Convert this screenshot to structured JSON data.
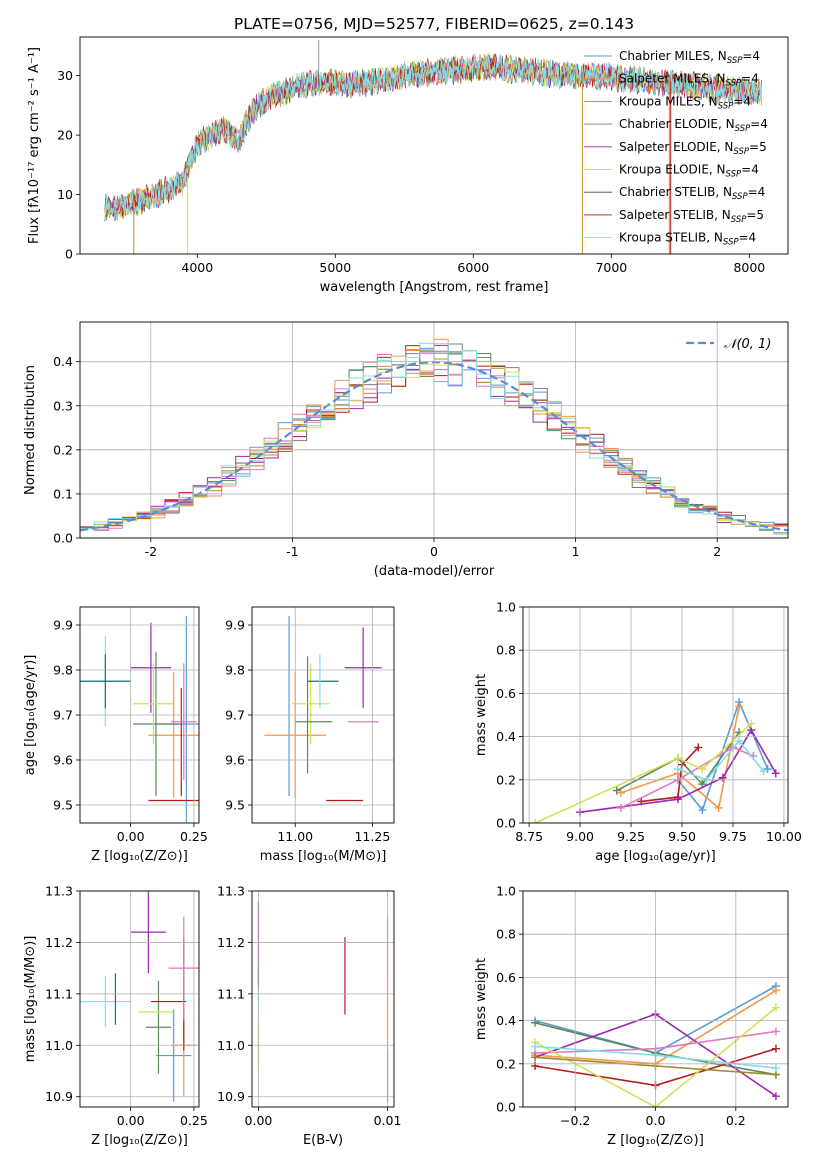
{
  "figure_title": "PLATE=0756, MJD=52577, FIBERID=0625, z=0.143",
  "colors": [
    "#1f77b4",
    "#ff7f0e",
    "#2ca02c",
    "#d62728",
    "#9467bd",
    "#8c564b",
    "#e377c2",
    "#7f7f7f",
    "#bcbd22",
    "#17becf"
  ],
  "chart_data": [
    {
      "id": "spectrum",
      "type": "line",
      "title": "PLATE=0756, MJD=52577, FIBERID=0625, z=0.143",
      "xlabel": "wavelength [Angstrom, rest frame]",
      "ylabel": "Flux [fλ10⁻¹⁷ erg cm⁻² s⁻¹ A⁻¹]",
      "xlim": [
        3150,
        8280
      ],
      "ylim": [
        0,
        36.5
      ],
      "xticks": [
        4000,
        5000,
        6000,
        7000,
        8000
      ],
      "yticks": [
        0,
        10,
        20,
        30
      ],
      "grid": false,
      "legend": "top-right",
      "x_range_data": [
        3330,
        8090
      ],
      "anchor_wavelengths": [
        3330,
        3400,
        3500,
        3600,
        3700,
        3800,
        3900,
        3950,
        4000,
        4100,
        4200,
        4300,
        4400,
        4500,
        4700,
        4900,
        5100,
        5300,
        5500,
        5700,
        5900,
        6100,
        6300,
        6500,
        6700,
        6900,
        7100,
        7300,
        7500,
        7700,
        7900,
        8090
      ],
      "anchor_flux": [
        8,
        7.5,
        8.5,
        9,
        10,
        11,
        12,
        16,
        18.5,
        20,
        21,
        19,
        24,
        26,
        28,
        29,
        28.5,
        29,
        30,
        30.5,
        31,
        31.5,
        31,
        30.5,
        30,
        30,
        29.5,
        29,
        28.5,
        28,
        27.5,
        27
      ],
      "series": [
        {
          "name": "Chabrier MILES, N_SSP=4",
          "label_main": "Chabrier MILES, N",
          "label_sub": "SSP",
          "label_tail": "=4",
          "color": "#5b9bd5"
        },
        {
          "name": "Salpeter MILES, N_SSP=4",
          "label_main": "Salpeter MILES, N",
          "label_sub": "SSP",
          "label_tail": "=4",
          "color": "#f79646"
        },
        {
          "name": "Kroupa MILES, N_SSP=4",
          "label_main": "Kroupa MILES, N",
          "label_sub": "SSP",
          "label_tail": "=4",
          "color": "#c08b2c"
        },
        {
          "name": "Chabrier ELODIE, N_SSP=4",
          "label_main": "Chabrier ELODIE, N",
          "label_sub": "SSP",
          "label_tail": "=4",
          "color": "#5a8a5a"
        },
        {
          "name": "Salpeter ELODIE, N_SSP=5",
          "label_main": "Salpeter ELODIE, N",
          "label_sub": "SSP",
          "label_tail": "=5",
          "color": "#9c27b0"
        },
        {
          "name": "Kroupa ELODIE, N_SSP=4",
          "label_main": "Kroupa ELODIE, N",
          "label_sub": "SSP",
          "label_tail": "=4",
          "color": "#d4e157"
        },
        {
          "name": "Chabrier STELIB, N_SSP=4",
          "label_main": "Chabrier STELIB, N",
          "label_sub": "SSP",
          "label_tail": "=4",
          "color": "#444444"
        },
        {
          "name": "Salpeter STELIB, N_SSP=5",
          "label_main": "Salpeter STELIB, N",
          "label_sub": "SSP",
          "label_tail": "=5",
          "color": "#b71c1c"
        },
        {
          "name": "Kroupa STELIB, N_SSP=4",
          "label_main": "Kroupa STELIB, N",
          "label_sub": "SSP",
          "label_tail": "=4",
          "color": "#80deea"
        }
      ]
    },
    {
      "id": "residuals",
      "type": "line",
      "xlabel": "(data-model)/error",
      "ylabel": "Normed distribution",
      "xlim": [
        -2.5,
        2.5
      ],
      "ylim": [
        0,
        0.49
      ],
      "xticks": [
        -2,
        -1,
        0,
        1,
        2
      ],
      "yticks": [
        0.0,
        0.1,
        0.2,
        0.3,
        0.4
      ],
      "ytick_labels": [
        "0.0",
        "0.1",
        "0.2",
        "0.3",
        "0.4"
      ],
      "grid": true,
      "legend": "top-right",
      "legend_label": "𝒩(0, 1)",
      "bin_edges_start": -2.5,
      "bin_width": 0.1,
      "histogram_colors": [
        "#5b9bd5",
        "#f79646",
        "#5a8a5a",
        "#b71c1c",
        "#9c27b0",
        "#c08b2c",
        "#e377c2",
        "#7f7f7f",
        "#d4e157",
        "#80deea"
      ],
      "gaussian": {
        "name": "N(0,1)",
        "mean": 0,
        "sigma": 1,
        "color": "#5b8bd5"
      }
    },
    {
      "id": "age-vs-Z",
      "type": "scatter",
      "xlabel": "Z [log₁₀(Z/Z⊙)]",
      "ylabel": "age  [log₁₀(age/yr)]",
      "xlim": [
        -0.2,
        0.27
      ],
      "ylim": [
        9.46,
        9.94
      ],
      "xticks": [
        0.0,
        0.25
      ],
      "xtick_labels": [
        "0.00",
        "0.25"
      ],
      "yticks": [
        9.5,
        9.6,
        9.7,
        9.8,
        9.9
      ],
      "grid": true,
      "points": [
        {
          "x": 0.22,
          "y": 9.68,
          "xerr": 0.12,
          "yerr": 0.24,
          "color": "#5b9bd5"
        },
        {
          "x": 0.17,
          "y": 9.655,
          "xerr": 0.1,
          "yerr": 0.14,
          "color": "#f79646"
        },
        {
          "x": 0.1,
          "y": 9.68,
          "xerr": 0.09,
          "yerr": 0.16,
          "color": "#5a8a5a"
        },
        {
          "x": 0.17,
          "y": 9.51,
          "xerr": 0.1,
          "yerr": 0.0,
          "color": "#b71c1c"
        },
        {
          "x": 0.2,
          "y": 9.64,
          "xerr": 0.0,
          "yerr": 0.12,
          "color": "#b71c1c"
        },
        {
          "x": 0.08,
          "y": 9.805,
          "xerr": 0.08,
          "yerr": 0.1,
          "color": "#9c27b0"
        },
        {
          "x": 0.21,
          "y": 9.685,
          "xerr": 0.05,
          "yerr": 0.13,
          "color": "#e377c2"
        },
        {
          "x": 0.09,
          "y": 9.725,
          "xerr": 0.08,
          "yerr": 0.09,
          "color": "#d4e157"
        },
        {
          "x": -0.1,
          "y": 9.775,
          "xerr": 0.1,
          "yerr": 0.1,
          "color": "#80deea"
        },
        {
          "x": -0.1,
          "y": 9.775,
          "xerr": 0.1,
          "yerr": 0.06,
          "color": "#1b6f6f"
        }
      ]
    },
    {
      "id": "age-vs-mass",
      "type": "scatter",
      "xlabel": "mass [log₁₀(M/M⊙)]",
      "ylabel": "",
      "xlim": [
        10.86,
        11.32
      ],
      "ylim": [
        9.46,
        9.94
      ],
      "xticks": [
        11.0,
        11.25
      ],
      "xtick_labels": [
        "11.00",
        "11.25"
      ],
      "yticks": [
        9.5,
        9.6,
        9.7,
        9.8,
        9.9
      ],
      "grid": true,
      "points": [
        {
          "x": 10.98,
          "y": 9.72,
          "xerr": 0.0,
          "yerr": 0.2,
          "color": "#5b9bd5"
        },
        {
          "x": 11.0,
          "y": 9.655,
          "xerr": 0.1,
          "yerr": 0.14,
          "color": "#f79646"
        },
        {
          "x": 11.04,
          "y": 9.7,
          "xerr": 0.0,
          "yerr": 0.13,
          "color": "#5a8a5a"
        },
        {
          "x": 11.16,
          "y": 9.51,
          "xerr": 0.06,
          "yerr": 0.0,
          "color": "#b71c1c"
        },
        {
          "x": 11.22,
          "y": 9.805,
          "xerr": 0.06,
          "yerr": 0.09,
          "color": "#9c27b0"
        },
        {
          "x": 11.22,
          "y": 9.685,
          "xerr": 0.05,
          "yerr": 0.0,
          "color": "#e377c2"
        },
        {
          "x": 11.05,
          "y": 9.725,
          "xerr": 0.06,
          "yerr": 0.09,
          "color": "#d4e157"
        },
        {
          "x": 11.06,
          "y": 9.685,
          "xerr": 0.06,
          "yerr": 0.0,
          "color": "#5a8a5a"
        },
        {
          "x": 11.09,
          "y": 9.775,
          "xerr": 0.05,
          "yerr": 0.0,
          "color": "#1b6f6f"
        },
        {
          "x": 11.08,
          "y": 9.775,
          "xerr": 0.0,
          "yerr": 0.06,
          "color": "#80deea"
        }
      ]
    },
    {
      "id": "weight-vs-age",
      "type": "line",
      "xlabel": "age  [log₁₀(age/yr)]",
      "ylabel": "mass weight",
      "xlim": [
        8.72,
        10.02
      ],
      "ylim": [
        0,
        1.0
      ],
      "xticks": [
        8.75,
        9.0,
        9.25,
        9.5,
        9.75,
        10.0
      ],
      "xtick_labels": [
        "8.75",
        "9.00",
        "9.25",
        "9.50",
        "9.75",
        "10.00"
      ],
      "yticks": [
        0,
        0.2,
        0.4,
        0.6,
        0.8,
        1.0
      ],
      "ytick_labels": [
        "0.0",
        "0.2",
        "0.4",
        "0.6",
        "0.8",
        "1.0"
      ],
      "grid": true,
      "series": [
        {
          "color": "#5b9bd5",
          "x": [
            9.48,
            9.6,
            9.78,
            9.92
          ],
          "y": [
            0.2,
            0.06,
            0.56,
            0.25
          ]
        },
        {
          "color": "#f79646",
          "x": [
            9.2,
            9.48,
            9.68,
            9.78
          ],
          "y": [
            0.14,
            0.23,
            0.07,
            0.54
          ]
        },
        {
          "color": "#5a8a5a",
          "x": [
            9.18,
            9.48,
            9.6,
            9.78
          ],
          "y": [
            0.15,
            0.3,
            0.18,
            0.42
          ]
        },
        {
          "color": "#b71c1c",
          "x": [
            9.3,
            9.48,
            9.5,
            9.58
          ],
          "y": [
            0.1,
            0.12,
            0.27,
            0.35
          ]
        },
        {
          "color": "#9c27b0",
          "x": [
            9.0,
            9.48,
            9.7,
            9.84,
            9.96
          ],
          "y": [
            0.05,
            0.11,
            0.21,
            0.43,
            0.23
          ]
        },
        {
          "color": "#e377c2",
          "x": [
            9.2,
            9.48,
            9.75,
            9.85
          ],
          "y": [
            0.07,
            0.2,
            0.35,
            0.31
          ]
        },
        {
          "color": "#d4e157",
          "x": [
            8.78,
            9.48,
            9.6,
            9.84
          ],
          "y": [
            0.0,
            0.3,
            0.25,
            0.46
          ]
        },
        {
          "color": "#80deea",
          "x": [
            9.48,
            9.62,
            9.78,
            9.9
          ],
          "y": [
            0.25,
            0.2,
            0.38,
            0.24
          ]
        }
      ]
    },
    {
      "id": "mass-vs-Z",
      "type": "scatter",
      "xlabel": "Z [log₁₀(Z/Z⊙)]",
      "ylabel": "mass [log₁₀(M/M⊙)]",
      "xlim": [
        -0.2,
        0.27
      ],
      "ylim": [
        10.88,
        11.3
      ],
      "xticks": [
        0.0,
        0.25
      ],
      "xtick_labels": [
        "0.00",
        "0.25"
      ],
      "yticks": [
        10.9,
        11.0,
        11.1,
        11.2,
        11.3
      ],
      "ytick_labels": [
        "10.9",
        "11.0",
        "11.1",
        "11.2",
        "11.3"
      ],
      "grid": true,
      "points": [
        {
          "x": 0.17,
          "y": 10.98,
          "xerr": 0.07,
          "yerr": 0.09,
          "color": "#5b9bd5"
        },
        {
          "x": 0.21,
          "y": 11.0,
          "xerr": 0.05,
          "yerr": 0.1,
          "color": "#f79646"
        },
        {
          "x": 0.11,
          "y": 11.035,
          "xerr": 0.05,
          "yerr": 0.09,
          "color": "#5a8a5a"
        },
        {
          "x": 0.15,
          "y": 11.085,
          "xerr": 0.07,
          "yerr": 0.0,
          "color": "#b71c1c"
        },
        {
          "x": 0.21,
          "y": 11.1,
          "xerr": 0.0,
          "yerr": 0.11,
          "color": "#b71c1c"
        },
        {
          "x": 0.07,
          "y": 11.22,
          "xerr": 0.07,
          "yerr": 0.08,
          "color": "#9c27b0"
        },
        {
          "x": 0.21,
          "y": 11.15,
          "xerr": 0.06,
          "yerr": 0.1,
          "color": "#e377c2"
        },
        {
          "x": 0.1,
          "y": 11.065,
          "xerr": 0.07,
          "yerr": 0.0,
          "color": "#d4e157"
        },
        {
          "x": -0.1,
          "y": 11.085,
          "xerr": 0.1,
          "yerr": 0.05,
          "color": "#80deea"
        },
        {
          "x": -0.06,
          "y": 11.09,
          "xerr": 0.0,
          "yerr": 0.05,
          "color": "#1b6f6f"
        }
      ]
    },
    {
      "id": "mass-vs-ebv",
      "type": "scatter",
      "xlabel": "E(B-V)",
      "ylabel": "",
      "xlim": [
        -0.0005,
        0.0105
      ],
      "ylim": [
        10.88,
        11.3
      ],
      "xticks": [
        0.0,
        0.01
      ],
      "xtick_labels": [
        "0.00",
        "0.01"
      ],
      "yticks": [
        10.9,
        11.0,
        11.1,
        11.2,
        11.3
      ],
      "ytick_labels": [
        "10.9",
        "11.0",
        "11.1",
        "11.2",
        "11.3"
      ],
      "grid": true,
      "points": [
        {
          "x": 0.0,
          "y": 11.2,
          "xerr": 0.0,
          "yerr": 0.08,
          "color": "#9c27b0"
        },
        {
          "x": 0.0,
          "y": 11.05,
          "xerr": 0.0,
          "yerr": 0.09,
          "color": "#80deea"
        },
        {
          "x": 0.0,
          "y": 11.0,
          "xerr": 0.0,
          "yerr": 0.05,
          "color": "#d4e157"
        },
        {
          "x": 0.0,
          "y": 11.13,
          "xerr": 0.0,
          "yerr": 0.02,
          "color": "#5a8a5a"
        },
        {
          "x": 0.0067,
          "y": 11.135,
          "xerr": 0.0,
          "yerr": 0.075,
          "color": "#b71c1c"
        },
        {
          "x": 0.01,
          "y": 11.19,
          "xerr": 0.0,
          "yerr": 0.06,
          "color": "#e377c2"
        },
        {
          "x": 0.01,
          "y": 10.94,
          "xerr": 0.0,
          "yerr": 0.05,
          "color": "#5b9bd5"
        },
        {
          "x": 0.01,
          "y": 11.05,
          "xerr": 0.0,
          "yerr": 0.08,
          "color": "#f79646"
        }
      ]
    },
    {
      "id": "weight-vs-Z",
      "type": "line",
      "xlabel": "Z [log₁₀(Z/Z⊙)]",
      "ylabel": "mass weight",
      "xlim": [
        -0.33,
        0.33
      ],
      "ylim": [
        0,
        1.0
      ],
      "xticks": [
        -0.2,
        0.0,
        0.2
      ],
      "xtick_labels": [
        "−0.2",
        "0.0",
        "0.2"
      ],
      "yticks": [
        0,
        0.2,
        0.4,
        0.6,
        0.8,
        1.0
      ],
      "ytick_labels": [
        "0.0",
        "0.2",
        "0.4",
        "0.6",
        "0.8",
        "1.0"
      ],
      "grid": true,
      "series": [
        {
          "color": "#5b9bd5",
          "x": [
            -0.3,
            0.0,
            0.3
          ],
          "y": [
            0.4,
            0.25,
            0.56
          ]
        },
        {
          "color": "#f79646",
          "x": [
            -0.3,
            0.0,
            0.3
          ],
          "y": [
            0.24,
            0.2,
            0.54
          ]
        },
        {
          "color": "#5a8a5a",
          "x": [
            -0.3,
            0.0,
            0.3
          ],
          "y": [
            0.39,
            0.25,
            0.15
          ]
        },
        {
          "color": "#b71c1c",
          "x": [
            -0.3,
            0.0,
            0.3
          ],
          "y": [
            0.19,
            0.1,
            0.27
          ]
        },
        {
          "color": "#9c27b0",
          "x": [
            -0.3,
            0.0,
            0.3
          ],
          "y": [
            0.23,
            0.43,
            0.05
          ]
        },
        {
          "color": "#e377c2",
          "x": [
            -0.3,
            0.0,
            0.3
          ],
          "y": [
            0.25,
            0.27,
            0.35
          ]
        },
        {
          "color": "#d4e157",
          "x": [
            -0.3,
            0.0,
            0.3
          ],
          "y": [
            0.3,
            0.0,
            0.46
          ]
        },
        {
          "color": "#9c8a2c",
          "x": [
            -0.3,
            0.0,
            0.3
          ],
          "y": [
            0.23,
            0.19,
            0.15
          ]
        },
        {
          "color": "#80deea",
          "x": [
            -0.3,
            0.0,
            0.3
          ],
          "y": [
            0.28,
            0.24,
            0.18
          ]
        }
      ]
    }
  ]
}
